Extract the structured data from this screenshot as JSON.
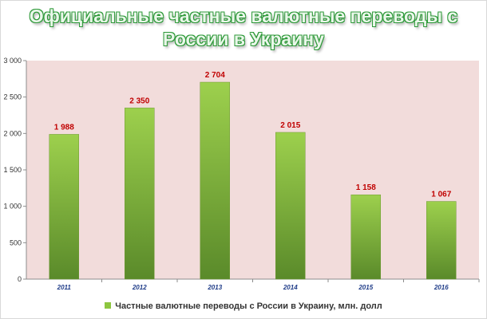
{
  "page": {
    "title_line1": "Официальные частные валютные переводы с",
    "title_line2": "России в Украину"
  },
  "colors": {
    "plot_background": "#f2dcdb",
    "bar_top": "#9dd04d",
    "bar_bottom": "#5a8a2a",
    "data_label": "#c00000",
    "category_label": "#1f3c88"
  },
  "chart_data": {
    "type": "bar",
    "title": "Официальные частные валютные переводы с России в Украину",
    "categories": [
      "2011",
      "2012",
      "2013",
      "2014",
      "2015",
      "2016"
    ],
    "series": [
      {
        "name": "Частные валютные переводы с России в Украину, млн. долл",
        "values": [
          1988,
          2350,
          2704,
          2015,
          1158,
          1067
        ],
        "labels": [
          "1 988",
          "2 350",
          "2 704",
          "2 015",
          "1 158",
          "1 067"
        ]
      }
    ],
    "ylim": [
      0,
      3000
    ],
    "yticks": [
      0,
      500,
      1000,
      1500,
      2000,
      2500,
      3000
    ],
    "ytick_labels": [
      "0",
      "500",
      "1 000",
      "1 500",
      "2 000",
      "2 500",
      "3 000"
    ],
    "grid": false,
    "legend_position": "bottom"
  }
}
